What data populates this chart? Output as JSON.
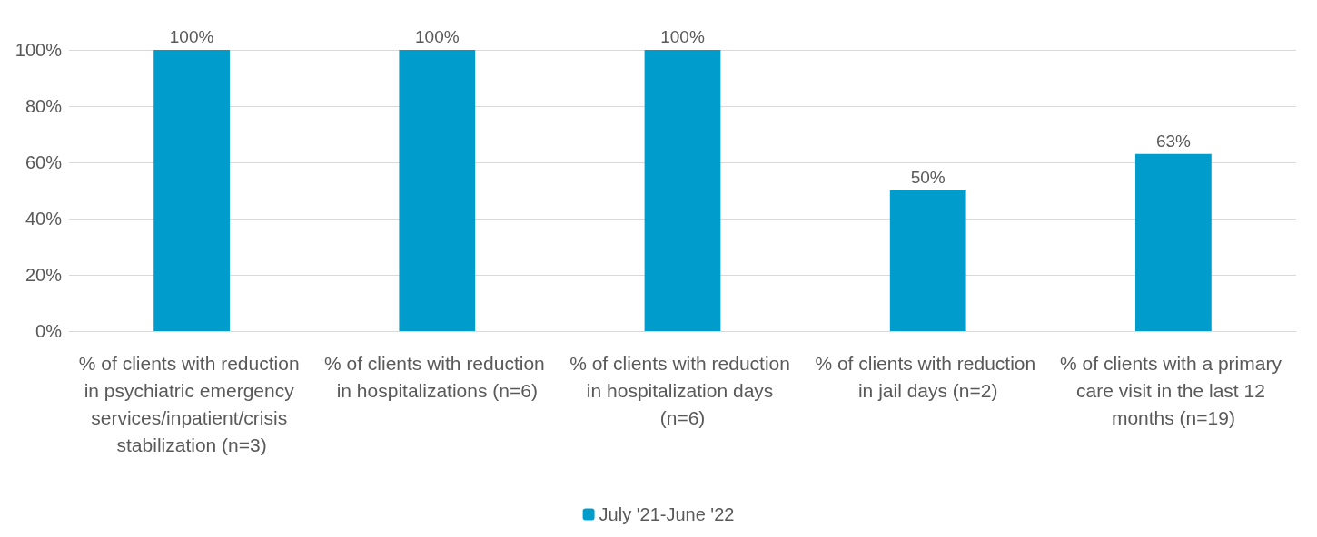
{
  "chart_data": {
    "type": "bar",
    "categories": [
      "% of clients with reduction in psychiatric emergency services/inpatient/crisis stabilization (n=3)",
      "% of clients with reduction in hospitalizations (n=6)",
      "% of clients with reduction in hospitalization days (n=6)",
      "% of clients with reduction in jail days (n=2)",
      "% of clients with a primary care visit in the last 12 months (n=19)"
    ],
    "series": [
      {
        "name": "July '21-June '22",
        "color": "#009ccc",
        "values": [
          100,
          100,
          100,
          50,
          63
        ],
        "value_labels": [
          "100%",
          "100%",
          "100%",
          "50%",
          "63%"
        ]
      }
    ],
    "ylim": [
      0,
      100
    ],
    "yticks": [
      {
        "value": 0,
        "label": "0%"
      },
      {
        "value": 20,
        "label": "20%"
      },
      {
        "value": 40,
        "label": "40%"
      },
      {
        "value": 60,
        "label": "60%"
      },
      {
        "value": 80,
        "label": "80%"
      },
      {
        "value": 100,
        "label": "100%"
      }
    ],
    "grid": "y",
    "legend": "bottom"
  }
}
